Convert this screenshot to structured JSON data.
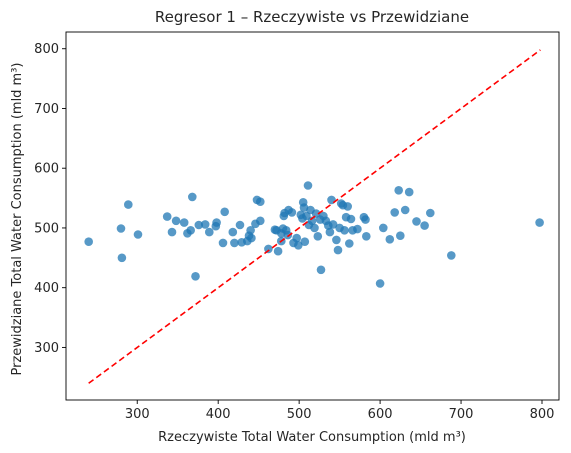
{
  "chart_data": {
    "type": "scatter",
    "title": "Regresor 1 – Rzeczywiste vs Przewidziane",
    "xlabel": "Rzeczywiste Total Water Consumption (mld m³)",
    "ylabel": "Przewidziane Total Water Consumption (mld m³)",
    "xlim": [
      212,
      821
    ],
    "ylim": [
      212,
      828
    ],
    "xticks": [
      300,
      400,
      500,
      600,
      700,
      800
    ],
    "yticks": [
      300,
      400,
      500,
      600,
      700,
      800
    ],
    "grid": false,
    "colors": {
      "points": "#1f77b4",
      "reference_line": "#ff0000"
    },
    "reference_line": {
      "x": [
        240,
        798
      ],
      "y": [
        240,
        798
      ],
      "style": "dashed"
    },
    "points": [
      [
        240,
        477
      ],
      [
        280,
        499
      ],
      [
        281,
        450
      ],
      [
        289,
        539
      ],
      [
        301,
        489
      ],
      [
        337,
        519
      ],
      [
        343,
        493
      ],
      [
        348,
        512
      ],
      [
        358,
        509
      ],
      [
        362,
        491
      ],
      [
        366,
        496
      ],
      [
        368,
        552
      ],
      [
        372,
        419
      ],
      [
        376,
        505
      ],
      [
        384,
        506
      ],
      [
        389,
        493
      ],
      [
        397,
        503
      ],
      [
        398,
        509
      ],
      [
        406,
        475
      ],
      [
        408,
        527
      ],
      [
        418,
        493
      ],
      [
        420,
        475
      ],
      [
        427,
        505
      ],
      [
        429,
        476
      ],
      [
        436,
        478
      ],
      [
        438,
        487
      ],
      [
        440,
        496
      ],
      [
        441,
        483
      ],
      [
        446,
        507
      ],
      [
        448,
        547
      ],
      [
        452,
        512
      ],
      [
        452,
        544
      ],
      [
        462,
        465
      ],
      [
        470,
        497
      ],
      [
        472,
        496
      ],
      [
        474,
        461
      ],
      [
        478,
        478
      ],
      [
        478,
        491
      ],
      [
        480,
        499
      ],
      [
        481,
        520
      ],
      [
        482,
        525
      ],
      [
        484,
        496
      ],
      [
        486,
        488
      ],
      [
        487,
        530
      ],
      [
        491,
        526
      ],
      [
        493,
        475
      ],
      [
        497,
        483
      ],
      [
        499,
        471
      ],
      [
        502,
        522
      ],
      [
        504,
        516
      ],
      [
        505,
        543
      ],
      [
        506,
        534
      ],
      [
        507,
        477
      ],
      [
        509,
        520
      ],
      [
        511,
        571
      ],
      [
        512,
        505
      ],
      [
        514,
        530
      ],
      [
        516,
        512
      ],
      [
        519,
        500
      ],
      [
        521,
        524
      ],
      [
        523,
        486
      ],
      [
        526,
        514
      ],
      [
        527,
        430
      ],
      [
        530,
        520
      ],
      [
        533,
        512
      ],
      [
        536,
        504
      ],
      [
        538,
        493
      ],
      [
        540,
        547
      ],
      [
        542,
        506
      ],
      [
        546,
        480
      ],
      [
        548,
        463
      ],
      [
        550,
        500
      ],
      [
        552,
        541
      ],
      [
        554,
        538
      ],
      [
        556,
        496
      ],
      [
        558,
        518
      ],
      [
        560,
        536
      ],
      [
        562,
        474
      ],
      [
        564,
        515
      ],
      [
        566,
        496
      ],
      [
        572,
        498
      ],
      [
        580,
        518
      ],
      [
        582,
        514
      ],
      [
        583,
        486
      ],
      [
        600,
        407
      ],
      [
        604,
        500
      ],
      [
        612,
        481
      ],
      [
        618,
        526
      ],
      [
        623,
        563
      ],
      [
        625,
        487
      ],
      [
        631,
        530
      ],
      [
        636,
        560
      ],
      [
        645,
        511
      ],
      [
        655,
        504
      ],
      [
        662,
        525
      ],
      [
        688,
        454
      ],
      [
        797,
        509
      ]
    ]
  }
}
